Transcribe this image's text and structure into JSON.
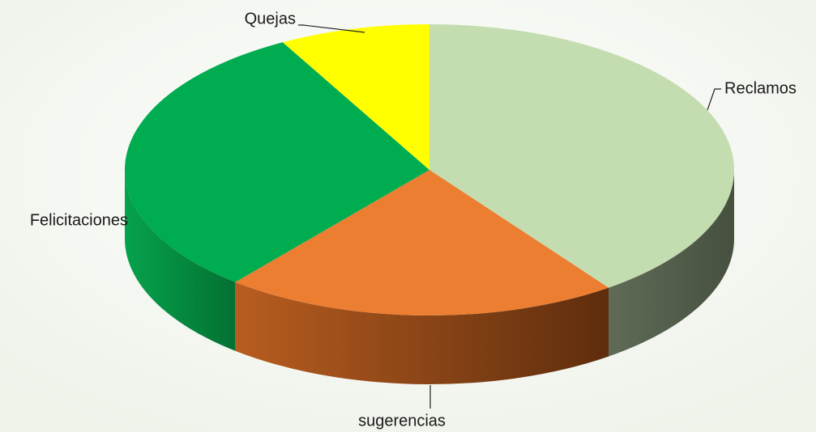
{
  "chart_data": {
    "type": "pie",
    "style": "3d",
    "categories": [
      "Reclamos",
      "sugerencias",
      "Felicitaciones",
      "Quejas"
    ],
    "values": [
      40,
      21,
      31,
      8
    ],
    "colors": [
      "#c4ddb0",
      "#ec7e32",
      "#00ac50",
      "#ffff00"
    ],
    "side_colors": {
      "Reclamos": [
        "#5f6b57",
        "#47503f"
      ],
      "sugerencias": [
        "#b85d20",
        "#5e2d0d"
      ],
      "Felicitaciones": [
        "#06a24c",
        "#037133"
      ]
    },
    "start_angle_deg": 0,
    "direction": "clockwise",
    "legend": "none",
    "data_labels": "category name with leader lines"
  }
}
